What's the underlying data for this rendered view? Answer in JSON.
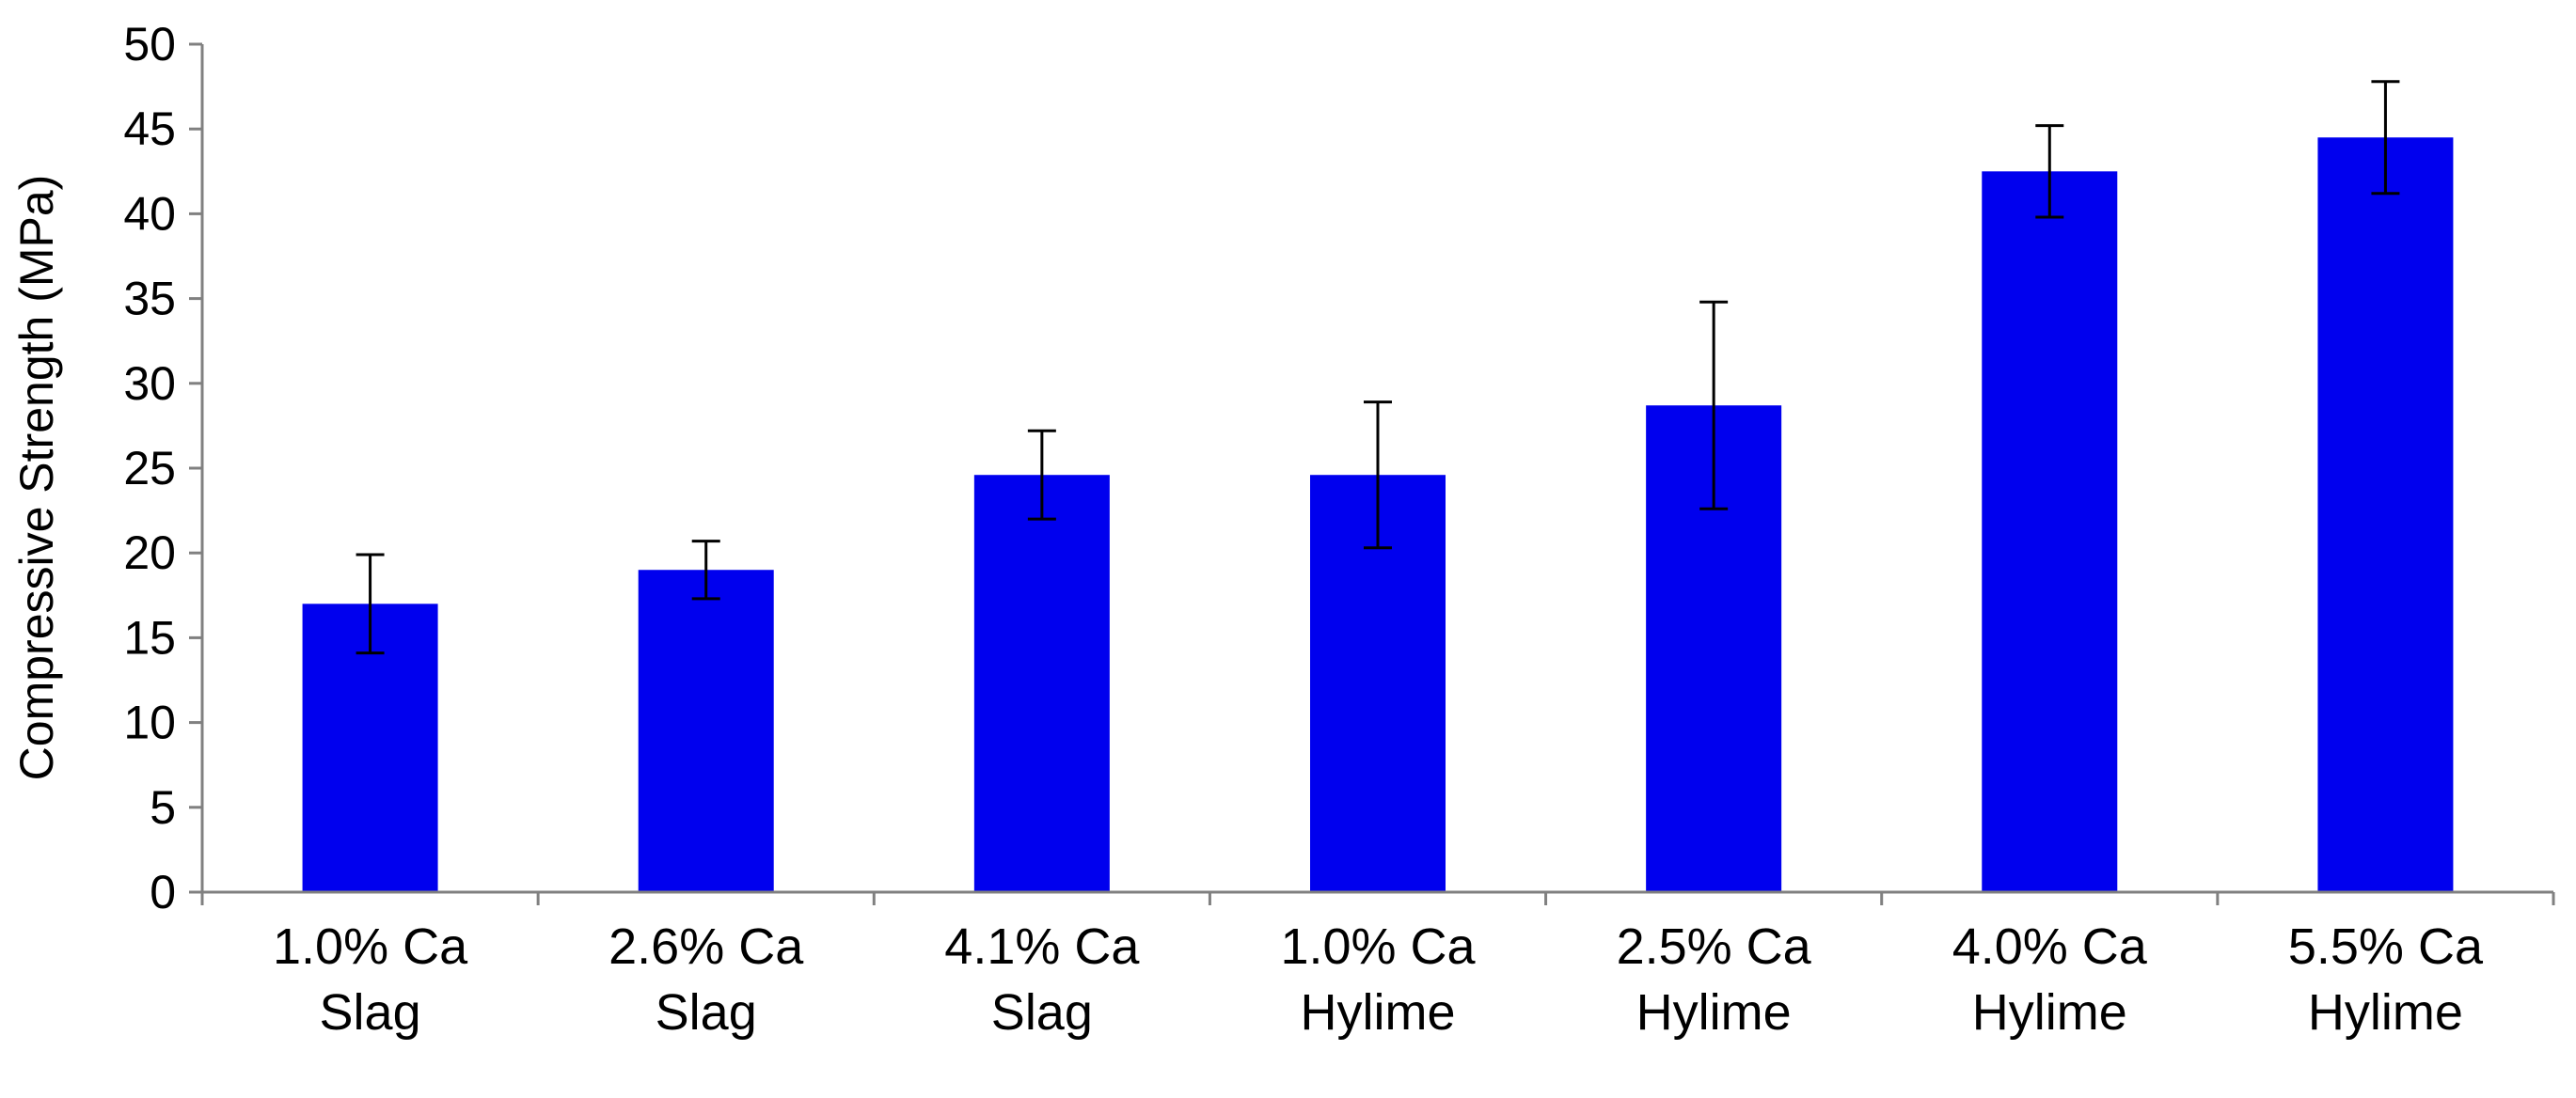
{
  "chart_data": {
    "type": "bar",
    "title": "",
    "xlabel": "",
    "ylabel": "Compressive Strength (MPa)",
    "ylim": [
      0,
      50
    ],
    "yticks": [
      "0",
      "5",
      "10",
      "15",
      "20",
      "25",
      "30",
      "35",
      "40",
      "45",
      "50"
    ],
    "grid": false,
    "legend": "none",
    "bar_color": "#0000ee",
    "categories": [
      [
        "1.0% Ca",
        "Slag"
      ],
      [
        "2.6% Ca",
        "Slag"
      ],
      [
        "4.1% Ca",
        "Slag"
      ],
      [
        "1.0% Ca",
        "Hylime"
      ],
      [
        "2.5% Ca",
        "Hylime"
      ],
      [
        "4.0% Ca",
        "Hylime"
      ],
      [
        "5.5% Ca",
        "Hylime"
      ]
    ],
    "values": [
      17.0,
      19.0,
      24.6,
      24.6,
      28.7,
      42.5,
      44.5
    ],
    "error": [
      2.9,
      1.7,
      2.6,
      4.3,
      6.1,
      2.7,
      3.3
    ]
  }
}
